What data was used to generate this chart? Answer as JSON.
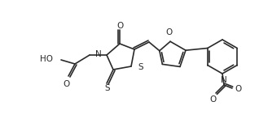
{
  "line_color": "#2a2a2a",
  "line_width": 1.2,
  "bg": "#ffffff",
  "fs": 7.0,
  "fs_sub": 5.0,
  "fig_w": 3.18,
  "fig_h": 1.52,
  "dpi": 100,
  "xlim": [
    0,
    318
  ],
  "ylim": [
    0,
    152
  ]
}
